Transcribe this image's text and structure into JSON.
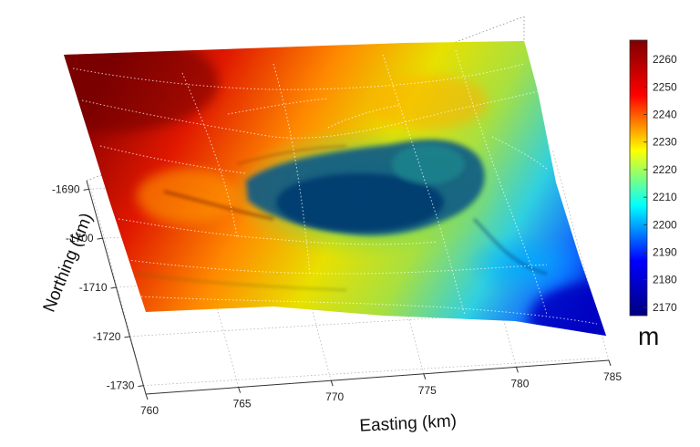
{
  "chart_data": {
    "type": "heatmap",
    "title": "",
    "xlabel": "Easting (km)",
    "ylabel": "Northing (km)",
    "xlim": [
      760,
      785
    ],
    "ylim": [
      -1735,
      -1685
    ],
    "x_ticks": [
      "760",
      "765",
      "770",
      "775",
      "780",
      "785"
    ],
    "y_ticks": [
      "-1690",
      "-1700",
      "-1710",
      "-1720",
      "-1730"
    ],
    "colorbar": {
      "unit": "m",
      "min": 2167,
      "max": 2267,
      "ticks": [
        "2260",
        "2250",
        "2240",
        "2230",
        "2220",
        "2210",
        "2200",
        "2190",
        "2180",
        "2170"
      ],
      "colors": [
        "#7f0000",
        "#ff0000",
        "#ffff00",
        "#00ffff",
        "#0000ff",
        "#00007f"
      ]
    },
    "surface": {
      "depression_center": {
        "easting": 772,
        "northing": -1706
      },
      "high_elevation_side": "north-west",
      "low_elevation_side": "south-east",
      "contour_lines": "dotted white"
    }
  }
}
